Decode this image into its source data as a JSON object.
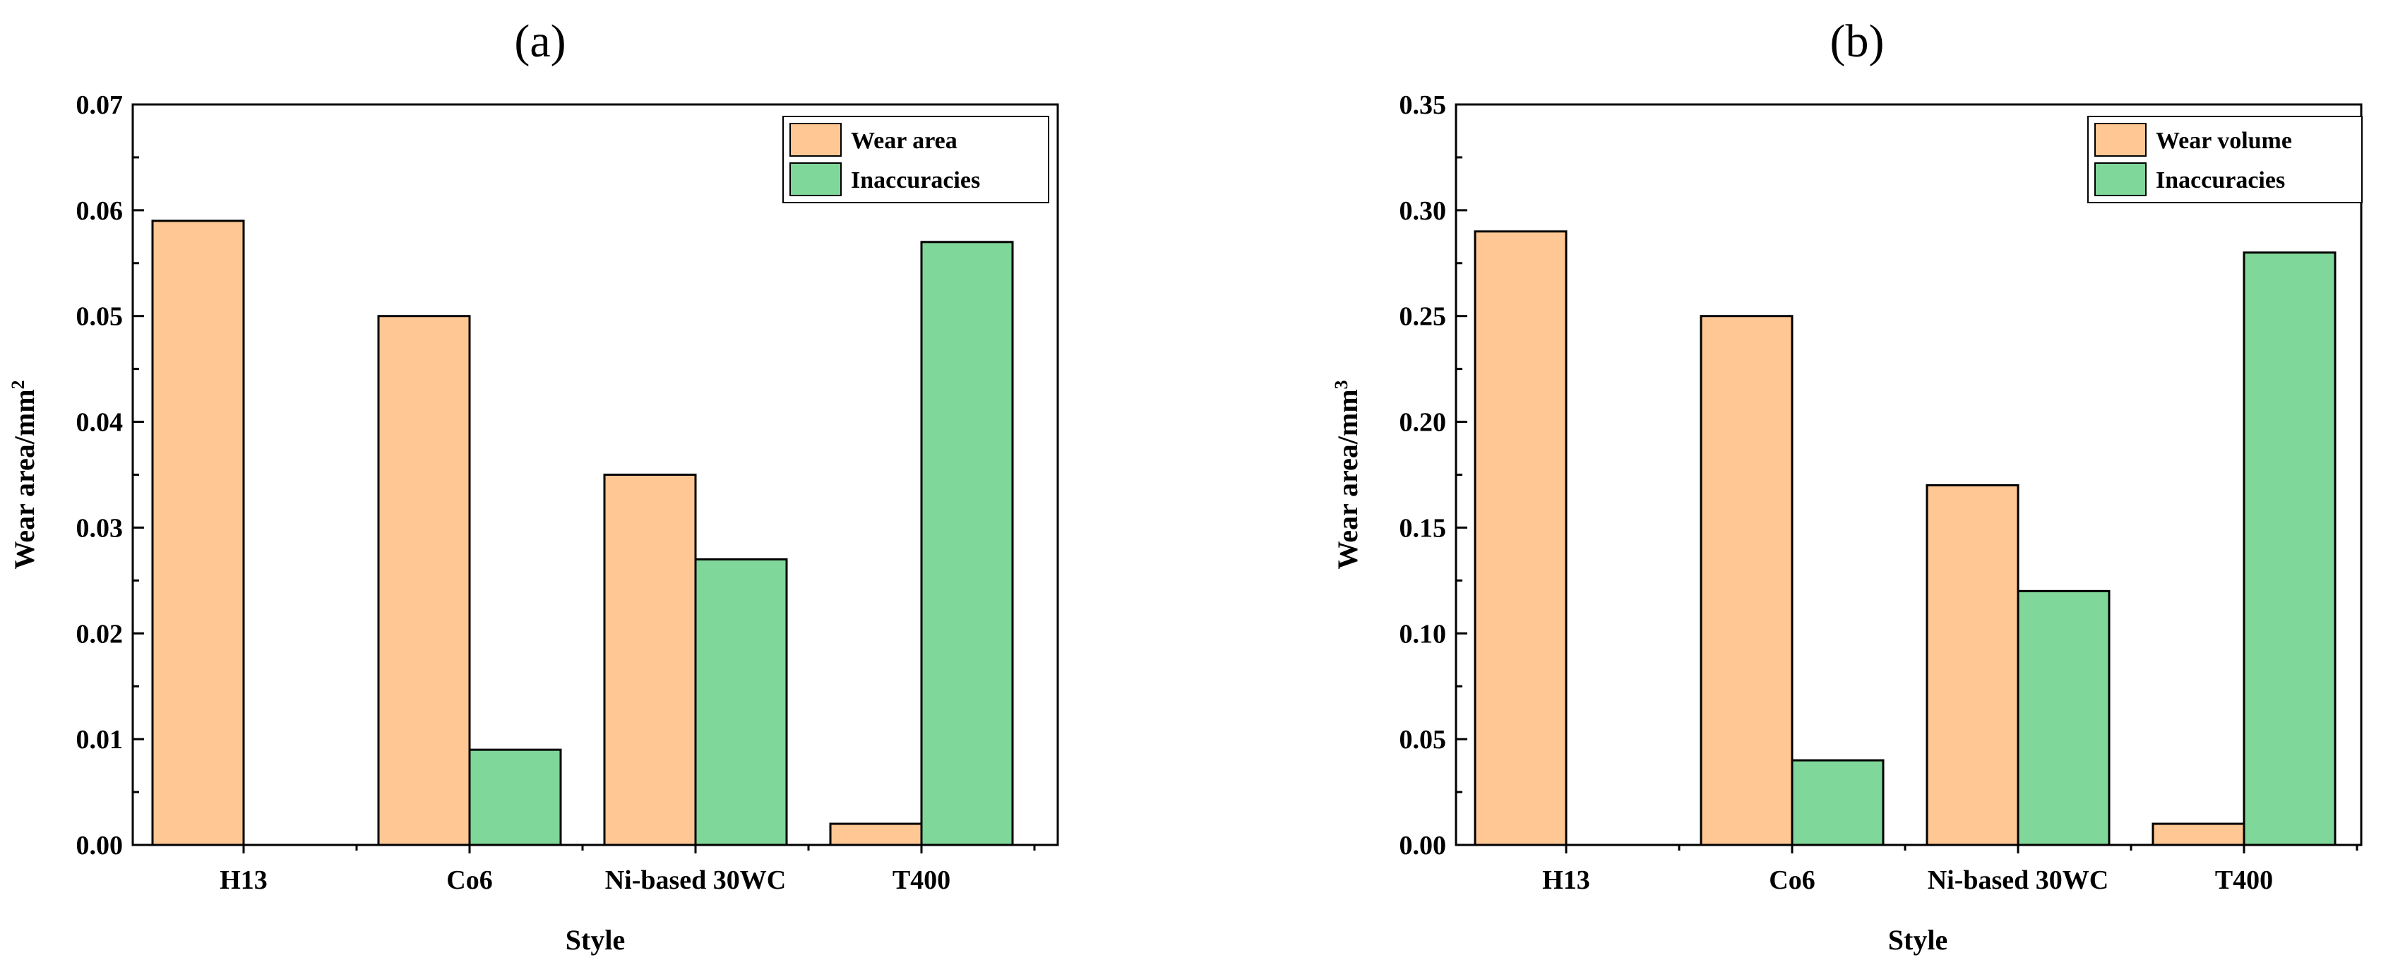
{
  "colors": {
    "primary": "#FFC793",
    "secondary": "#7FD79A",
    "stroke": "#000000"
  },
  "chart_data": [
    {
      "type": "bar",
      "panel_label": "(a)",
      "categories": [
        "H13",
        "Co6",
        "Ni-based 30WC",
        "T400"
      ],
      "series": [
        {
          "name": "Wear area",
          "values": [
            0.059,
            0.05,
            0.035,
            0.002
          ]
        },
        {
          "name": "Inaccuracies",
          "values": [
            0.0,
            0.009,
            0.027,
            0.057
          ]
        }
      ],
      "xlabel": "Style",
      "ylabel": "Wear area/mm",
      "ylabel_sup": "2",
      "ylim": [
        0,
        0.07
      ],
      "yticks": [
        0.0,
        0.01,
        0.02,
        0.03,
        0.04,
        0.05,
        0.06,
        0.07
      ],
      "ytick_labels": [
        "0.00",
        "0.01",
        "0.02",
        "0.03",
        "0.04",
        "0.05",
        "0.06",
        "0.07"
      ],
      "legend": "top-right"
    },
    {
      "type": "bar",
      "panel_label": "(b)",
      "categories": [
        "H13",
        "Co6",
        "Ni-based 30WC",
        "T400"
      ],
      "series": [
        {
          "name": "Wear volume",
          "values": [
            0.29,
            0.25,
            0.17,
            0.01
          ]
        },
        {
          "name": "Inaccuracies",
          "values": [
            0.0,
            0.04,
            0.12,
            0.28
          ]
        }
      ],
      "xlabel": "Style",
      "ylabel": "Wear area/mm",
      "ylabel_sup": "3",
      "ylim": [
        0,
        0.35
      ],
      "yticks": [
        0.0,
        0.05,
        0.1,
        0.15,
        0.2,
        0.25,
        0.3,
        0.35
      ],
      "ytick_labels": [
        "0.00",
        "0.05",
        "0.10",
        "0.15",
        "0.20",
        "0.25",
        "0.30",
        "0.35"
      ],
      "legend": "top-right"
    }
  ]
}
